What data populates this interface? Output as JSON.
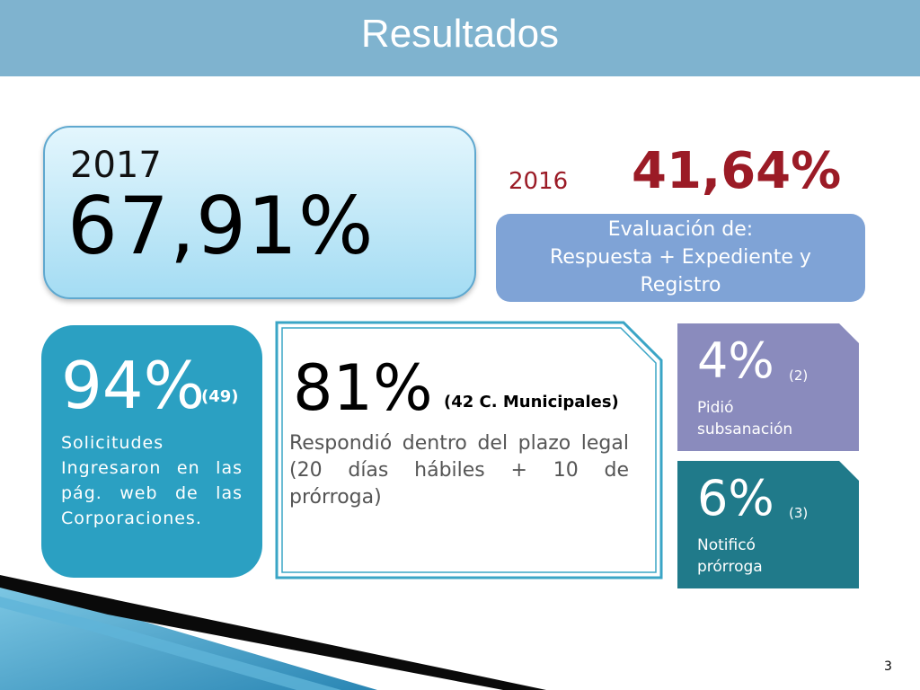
{
  "slide": {
    "title": "Resultados",
    "page_number": "3"
  },
  "highlight_2017": {
    "year": "2017",
    "value": "67,91%"
  },
  "compare_2016": {
    "year": "2016",
    "value": "41,64%"
  },
  "evaluation": {
    "line1": "Evaluación de:",
    "line2": "Respuesta + Expediente y",
    "line3": "Registro"
  },
  "stat_94": {
    "value": "94%",
    "count": "(49)",
    "description": "Solicitudes Ingresaron en las pág. web de las Corporaciones."
  },
  "stat_81": {
    "value": "81%",
    "count": "(42 C. Municipales)",
    "description": "Respondió dentro del plazo legal (20 días hábiles + 10 de prórroga)"
  },
  "stat_4": {
    "value": "4%",
    "count": "(2)",
    "line1": "Pidió",
    "line2": "subsanación"
  },
  "stat_6": {
    "value": "6%",
    "count": "(3)",
    "line1": "Notificó",
    "line2": "prórroga"
  },
  "colors": {
    "header": "#7fb3cf",
    "accent_red": "#9b1b26",
    "eval_blue": "#7fa3d6",
    "teal_box": "#2ba0c2",
    "purple_box": "#8a8bbd",
    "dark_teal_box": "#207a8a"
  }
}
